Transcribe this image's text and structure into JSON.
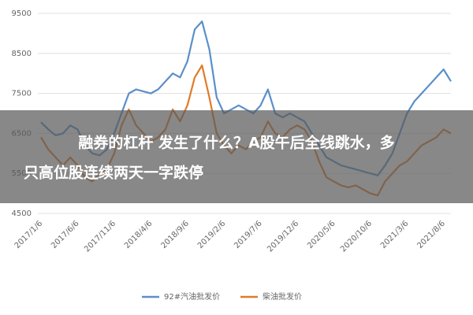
{
  "chart_data": {
    "type": "line",
    "categories": [
      "2017/1/6",
      null,
      null,
      null,
      null,
      "2017/6/6",
      null,
      null,
      null,
      null,
      "2017/11/6",
      null,
      null,
      null,
      null,
      "2018/4/6",
      null,
      null,
      null,
      null,
      "2018/9/6",
      null,
      null,
      null,
      null,
      "2019/2/6",
      null,
      null,
      null,
      null,
      "2019/7/6",
      null,
      null,
      null,
      null,
      "2019/12/6",
      null,
      null,
      null,
      null,
      "2020/5/6",
      null,
      null,
      null,
      null,
      "2020/10/6",
      null,
      null,
      null,
      null,
      "2021/3/6",
      null,
      null,
      null,
      null,
      "2021/8/6",
      null
    ],
    "series": [
      {
        "name": "92#汽油批发价",
        "color": "#5b8fc9",
        "values": [
          6780,
          6600,
          6450,
          6500,
          6700,
          6600,
          6200,
          6000,
          5950,
          6100,
          6500,
          7000,
          7500,
          7600,
          7550,
          7500,
          7600,
          7800,
          8000,
          7900,
          8300,
          9100,
          9300,
          8600,
          7400,
          7000,
          7100,
          7200,
          7100,
          7000,
          7200,
          7600,
          7000,
          6900,
          7000,
          6900,
          6800,
          6500,
          6200,
          5900,
          5800,
          5700,
          5650,
          5600,
          5550,
          5500,
          5450,
          5700,
          6000,
          6500,
          7000,
          7300,
          7500,
          7700,
          7900,
          8100,
          7800
        ]
      },
      {
        "name": "柴油批发价",
        "color": "#e07b2a",
        "values": [
          6400,
          6100,
          5900,
          5700,
          5900,
          5700,
          5400,
          5300,
          5500,
          5600,
          6000,
          6700,
          7100,
          6700,
          6500,
          6300,
          6400,
          6600,
          7100,
          6800,
          7200,
          7900,
          8200,
          7400,
          6500,
          6200,
          6000,
          6200,
          6100,
          6300,
          6400,
          6800,
          6500,
          6400,
          6600,
          6700,
          6600,
          6300,
          5800,
          5400,
          5300,
          5200,
          5150,
          5200,
          5100,
          5000,
          4950,
          5300,
          5500,
          5700,
          5800,
          6000,
          6200,
          6300,
          6400,
          6600,
          6500
        ]
      }
    ],
    "ylim": [
      4500,
      9500
    ],
    "yticks": [
      4500,
      5500,
      6500,
      7500,
      8500,
      9500
    ],
    "grid": true,
    "annotations": [
      "融券的杠杆 发生了什么？A股午后全线跳水，多",
      "只高位股连续两天一字跌停"
    ]
  }
}
